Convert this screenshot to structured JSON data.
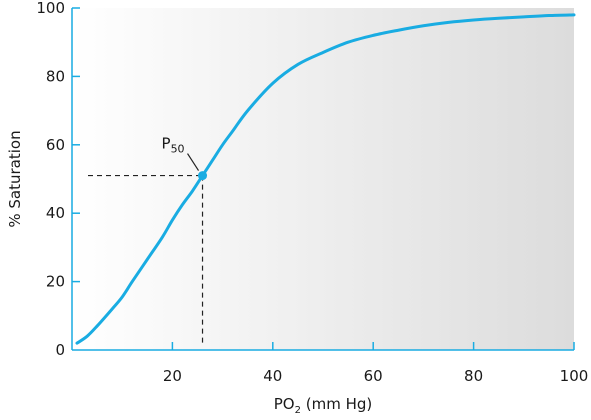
{
  "chart_data": {
    "type": "line",
    "title": "",
    "xlabel": "PO",
    "xlabel_sub": "2",
    "xlabel_suffix": " (mm Hg)",
    "ylabel": "% Saturation",
    "xlim": [
      0,
      100
    ],
    "ylim": [
      0,
      100
    ],
    "x_ticks": [
      20,
      40,
      60,
      80,
      100
    ],
    "y_ticks": [
      0,
      20,
      40,
      60,
      80,
      100
    ],
    "grid": false,
    "background": "gradient light-to-dark grey",
    "series": [
      {
        "color": "#19ace2",
        "x": [
          1,
          3,
          5,
          8,
          10,
          12,
          15,
          18,
          20,
          22,
          24,
          26,
          28,
          30,
          32,
          35,
          40,
          45,
          50,
          55,
          60,
          65,
          70,
          75,
          80,
          85,
          90,
          95,
          100
        ],
        "y": [
          2,
          4,
          7,
          12,
          15.5,
          20,
          26.5,
          33,
          38,
          42.5,
          46.5,
          51,
          55.5,
          60,
          64,
          70,
          78,
          83.5,
          87,
          90,
          92,
          93.5,
          94.8,
          95.8,
          96.5,
          97,
          97.4,
          97.8,
          98
        ]
      }
    ],
    "annotations": [
      {
        "label": "P",
        "label_sub": "50",
        "point": {
          "x": 26,
          "y": 51
        },
        "dashed_guides": true
      }
    ]
  }
}
